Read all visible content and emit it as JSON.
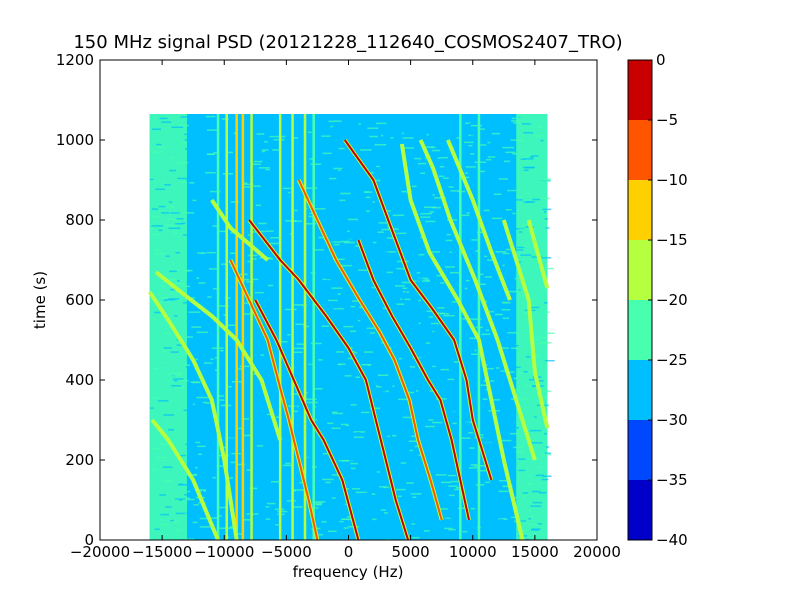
{
  "chart_data": {
    "type": "heatmap",
    "title": "150 MHz signal PSD (20121228_112640_COSMOS2407_TRO)",
    "xlabel": "frequency (Hz)",
    "ylabel": "time (s)",
    "xlim": [
      -20000,
      20000
    ],
    "ylim": [
      0,
      1200
    ],
    "xticks": [
      -20000,
      -15000,
      -10000,
      -5000,
      0,
      5000,
      10000,
      15000,
      20000
    ],
    "yticks": [
      0,
      200,
      400,
      600,
      800,
      1000,
      1200
    ],
    "data_extent": {
      "x": [
        -16000,
        16000
      ],
      "y": [
        0,
        1065
      ]
    },
    "background_level_dB": -27,
    "grid": false,
    "colorbar": {
      "range": [
        -40,
        0
      ],
      "ticks": [
        0,
        -5,
        -10,
        -15,
        -20,
        -25,
        -30,
        -35,
        -40
      ],
      "levels": [
        {
          "from": -40,
          "to": -35,
          "color": "#0000c8"
        },
        {
          "from": -35,
          "to": -30,
          "color": "#0048ff"
        },
        {
          "from": -30,
          "to": -25,
          "color": "#00bfff"
        },
        {
          "from": -25,
          "to": -20,
          "color": "#47ffaf"
        },
        {
          "from": -20,
          "to": -15,
          "color": "#b5ff40"
        },
        {
          "from": -15,
          "to": -10,
          "color": "#ffd000"
        },
        {
          "from": -10,
          "to": -5,
          "color": "#ff5500"
        },
        {
          "from": -5,
          "to": 0,
          "color": "#c80000"
        }
      ]
    },
    "vertical_lines": [
      {
        "freq": -10500,
        "level_dB": -20
      },
      {
        "freq": -9800,
        "level_dB": -17
      },
      {
        "freq": -9000,
        "level_dB": -13
      },
      {
        "freq": -8500,
        "level_dB": -13
      },
      {
        "freq": -7800,
        "level_dB": -15
      },
      {
        "freq": -5500,
        "level_dB": -18
      },
      {
        "freq": -4500,
        "level_dB": -17
      },
      {
        "freq": -3500,
        "level_dB": -17
      },
      {
        "freq": -2800,
        "level_dB": -22
      },
      {
        "freq": 9000,
        "level_dB": -22
      },
      {
        "freq": 10500,
        "level_dB": -21
      }
    ],
    "series": [
      {
        "center_freq": -14000,
        "level_dB": -15,
        "points": [
          {
            "t": 0,
            "f": -10500
          },
          {
            "t": 150,
            "f": -12500
          },
          {
            "t": 250,
            "f": -14500
          },
          {
            "t": 300,
            "f": -15800
          }
        ]
      },
      {
        "center_freq": -12000,
        "level_dB": -16,
        "points": [
          {
            "t": 0,
            "f": -9000
          },
          {
            "t": 200,
            "f": -10000
          },
          {
            "t": 350,
            "f": -11000
          },
          {
            "t": 450,
            "f": -12500
          },
          {
            "t": 550,
            "f": -14500
          },
          {
            "t": 620,
            "f": -16000
          }
        ]
      },
      {
        "center_freq": -9000,
        "level_dB": -15,
        "points": [
          {
            "t": 250,
            "f": -5500
          },
          {
            "t": 400,
            "f": -7000
          },
          {
            "t": 500,
            "f": -9000
          },
          {
            "t": 560,
            "f": -11000
          },
          {
            "t": 620,
            "f": -13500
          },
          {
            "t": 670,
            "f": -15500
          }
        ]
      },
      {
        "center_freq": -10000,
        "level_dB": -16,
        "points": [
          {
            "t": 700,
            "f": -6500
          },
          {
            "t": 780,
            "f": -9500
          },
          {
            "t": 850,
            "f": -11000
          }
        ]
      },
      {
        "center_freq": -4000,
        "level_dB": -8,
        "points": [
          {
            "t": 0,
            "f": -2500
          },
          {
            "t": 100,
            "f": -3200
          },
          {
            "t": 200,
            "f": -4000
          },
          {
            "t": 300,
            "f": -4800
          },
          {
            "t": 380,
            "f": -5500
          },
          {
            "t": 500,
            "f": -6500
          },
          {
            "t": 600,
            "f": -8000
          },
          {
            "t": 700,
            "f": -9500
          }
        ]
      },
      {
        "center_freq": -2000,
        "level_dB": -3,
        "points": [
          {
            "t": 0,
            "f": 800
          },
          {
            "t": 150,
            "f": -500
          },
          {
            "t": 250,
            "f": -2000
          },
          {
            "t": 300,
            "f": -3000
          },
          {
            "t": 400,
            "f": -4400
          },
          {
            "t": 500,
            "f": -5800
          },
          {
            "t": 600,
            "f": -7500
          }
        ]
      },
      {
        "center_freq": 2000,
        "level_dB": -3,
        "points": [
          {
            "t": 0,
            "f": 4800
          },
          {
            "t": 100,
            "f": 3800
          },
          {
            "t": 200,
            "f": 3000
          },
          {
            "t": 300,
            "f": 2200
          },
          {
            "t": 400,
            "f": 1400
          },
          {
            "t": 480,
            "f": 0
          },
          {
            "t": 560,
            "f": -1800
          },
          {
            "t": 650,
            "f": -4000
          },
          {
            "t": 700,
            "f": -5500
          },
          {
            "t": 800,
            "f": -8000
          }
        ]
      },
      {
        "center_freq": 5000,
        "level_dB": -5,
        "points": [
          {
            "t": 50,
            "f": 7500
          },
          {
            "t": 150,
            "f": 6600
          },
          {
            "t": 250,
            "f": 5600
          },
          {
            "t": 350,
            "f": 4900
          },
          {
            "t": 450,
            "f": 3700
          },
          {
            "t": 520,
            "f": 2500
          },
          {
            "t": 600,
            "f": 900
          },
          {
            "t": 700,
            "f": -1000
          },
          {
            "t": 800,
            "f": -2500
          },
          {
            "t": 900,
            "f": -4000
          }
        ]
      },
      {
        "center_freq": 8000,
        "level_dB": -3,
        "points": [
          {
            "t": 50,
            "f": 9700
          },
          {
            "t": 150,
            "f": 9000
          },
          {
            "t": 250,
            "f": 8300
          },
          {
            "t": 350,
            "f": 7400
          },
          {
            "t": 400,
            "f": 6400
          },
          {
            "t": 480,
            "f": 5000
          },
          {
            "t": 560,
            "f": 3500
          },
          {
            "t": 650,
            "f": 2000
          },
          {
            "t": 750,
            "f": 800
          }
        ]
      },
      {
        "center_freq": 9000,
        "level_dB": -4,
        "points": [
          {
            "t": 150,
            "f": 11500
          },
          {
            "t": 300,
            "f": 10000
          },
          {
            "t": 400,
            "f": 9500
          },
          {
            "t": 500,
            "f": 8500
          },
          {
            "t": 580,
            "f": 6700
          },
          {
            "t": 650,
            "f": 5000
          },
          {
            "t": 750,
            "f": 3800
          },
          {
            "t": 900,
            "f": 2000
          },
          {
            "t": 1000,
            "f": -300
          }
        ]
      },
      {
        "center_freq": 11000,
        "level_dB": -15,
        "points": [
          {
            "t": 0,
            "f": 14000
          },
          {
            "t": 200,
            "f": 12500
          },
          {
            "t": 350,
            "f": 11500
          },
          {
            "t": 500,
            "f": 10500
          },
          {
            "t": 600,
            "f": 8800
          },
          {
            "t": 720,
            "f": 6500
          },
          {
            "t": 850,
            "f": 5000
          },
          {
            "t": 990,
            "f": 4300
          }
        ]
      },
      {
        "center_freq": 13000,
        "level_dB": -16,
        "points": [
          {
            "t": 200,
            "f": 15000
          },
          {
            "t": 350,
            "f": 13500
          },
          {
            "t": 500,
            "f": 12000
          },
          {
            "t": 650,
            "f": 10200
          },
          {
            "t": 800,
            "f": 8200
          },
          {
            "t": 930,
            "f": 6800
          },
          {
            "t": 1000,
            "f": 5800
          }
        ]
      },
      {
        "center_freq": 14000,
        "level_dB": -17,
        "points": [
          {
            "t": 600,
            "f": 13000
          },
          {
            "t": 720,
            "f": 11500
          },
          {
            "t": 850,
            "f": 10000
          },
          {
            "t": 1000,
            "f": 8000
          }
        ]
      },
      {
        "center_freq": 16000,
        "level_dB": -16,
        "points": [
          {
            "t": 280,
            "f": 16000
          },
          {
            "t": 420,
            "f": 15000
          },
          {
            "t": 600,
            "f": 14500
          },
          {
            "t": 800,
            "f": 12500
          }
        ]
      },
      {
        "center_freq": 15500,
        "level_dB": -17,
        "points": [
          {
            "t": 630,
            "f": 16000
          },
          {
            "t": 720,
            "f": 15200
          },
          {
            "t": 800,
            "f": 14500
          }
        ]
      }
    ]
  }
}
